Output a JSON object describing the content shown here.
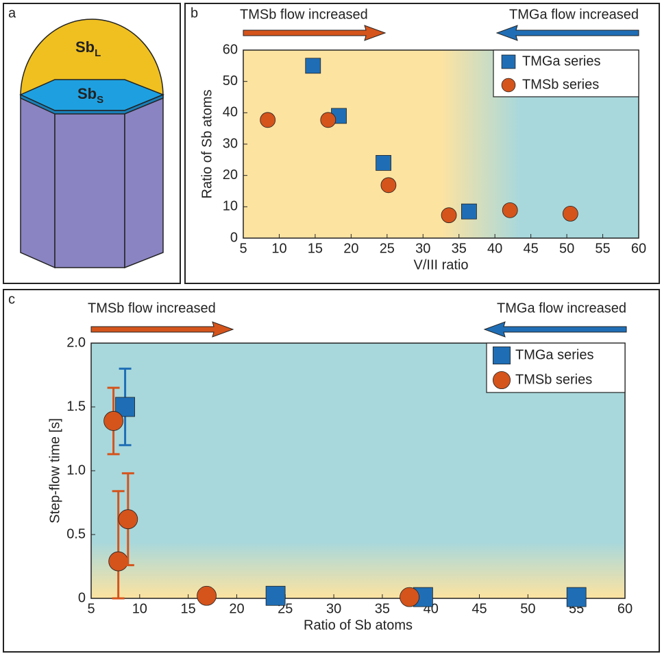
{
  "panel_a": {
    "label": "a",
    "liquid": {
      "main": "Sb",
      "sub": "L"
    },
    "solid": {
      "main": "Sb",
      "sub": "S"
    }
  },
  "chart_data": [
    {
      "type": "scatter",
      "panel_label": "b",
      "xlabel": "V/III ratio",
      "ylabel": "Ratio of Sb atoms",
      "annotations": [
        {
          "text": "TMSb flow increased",
          "color": "#d4541c"
        },
        {
          "text": "TMGa flow increased",
          "color": "#1f6eb5"
        }
      ],
      "xlim": [
        5,
        60
      ],
      "xticks": [
        5,
        10,
        15,
        20,
        25,
        30,
        35,
        40,
        45,
        50,
        55,
        60
      ],
      "ylim": [
        0,
        60
      ],
      "yticks": [
        0,
        10,
        20,
        30,
        40,
        50,
        60
      ],
      "legend": "upper right",
      "series": [
        {
          "name": "TMGa series",
          "color": "#1f6eb5",
          "marker": "square",
          "x": [
            14.7,
            18.3,
            24.5,
            36.4
          ],
          "values": [
            55,
            39,
            24,
            8.5
          ]
        },
        {
          "name": "TMSb series",
          "color": "#d4541c",
          "marker": "circle",
          "x": [
            8.4,
            16.8,
            25.2,
            33.6,
            42.1,
            50.5
          ],
          "values": [
            37.7,
            37.7,
            16.9,
            7.3,
            8.9,
            7.8
          ]
        }
      ]
    },
    {
      "type": "scatter",
      "panel_label": "c",
      "xlabel": "Ratio of Sb atoms",
      "ylabel": "Step-flow time [s]",
      "annotations": [
        {
          "text": "TMSb flow increased",
          "color": "#d4541c"
        },
        {
          "text": "TMGa flow increased",
          "color": "#1f6eb5"
        }
      ],
      "xlim": [
        5,
        60
      ],
      "xticks": [
        5,
        10,
        15,
        20,
        25,
        30,
        35,
        40,
        45,
        50,
        55,
        60
      ],
      "ylim": [
        0,
        2
      ],
      "yticks": [
        0,
        0.5,
        {
          "value": 1,
          "label": "1.0"
        },
        1.5,
        {
          "value": 2,
          "label": "2.0"
        }
      ],
      "legend": "upper right",
      "series": [
        {
          "name": "TMGa series",
          "color": "#1f6eb5",
          "marker": "square",
          "x": [
            8.5,
            24,
            39.2,
            55
          ],
          "values": [
            1.5,
            0.02,
            0.01,
            0.01
          ],
          "error_low": [
            0.3,
            null,
            null,
            null
          ],
          "error_high": [
            0.3,
            null,
            null,
            null
          ]
        },
        {
          "name": "TMSb series",
          "color": "#d4541c",
          "marker": "circle",
          "x": [
            7.3,
            7.8,
            8.8,
            16.9,
            37.8
          ],
          "values": [
            1.39,
            0.29,
            0.62,
            0.02,
            0.01
          ],
          "error_low": [
            0.26,
            0.29,
            0.36,
            null,
            null
          ],
          "error_high": [
            0.26,
            0.55,
            0.36,
            null,
            null
          ]
        }
      ]
    }
  ]
}
